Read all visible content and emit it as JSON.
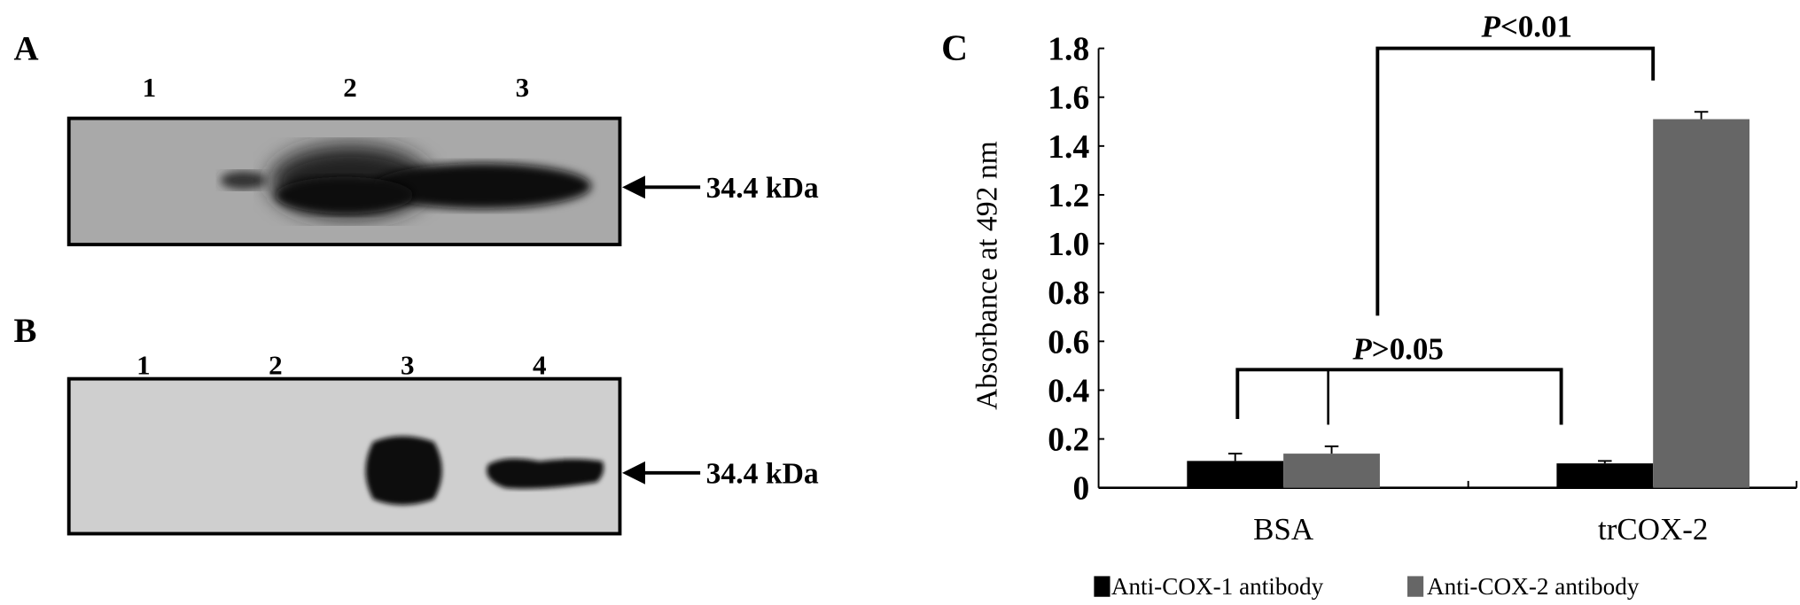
{
  "panel_a": {
    "label": "A",
    "lanes": [
      "1",
      "2",
      "3"
    ],
    "marker": "34.4 kDa"
  },
  "panel_b": {
    "label": "B",
    "lanes": [
      "1",
      "2",
      "3",
      "4"
    ],
    "marker": "34.4 kDa"
  },
  "chart_data": {
    "panel_label": "C",
    "type": "bar",
    "categories": [
      "BSA",
      "trCOX-2"
    ],
    "series": [
      {
        "name": "Anti-COX-1 antibody",
        "values": [
          0.11,
          0.1
        ],
        "errors": [
          0.03,
          0.01
        ],
        "color": "#000000"
      },
      {
        "name": "Anti-COX-2 antibody",
        "values": [
          0.14,
          1.51
        ],
        "errors": [
          0.03,
          0.03
        ],
        "color": "#666666"
      }
    ],
    "ylabel": "Absorbance at 492 nm",
    "xlabel": "",
    "ylim": [
      0,
      1.8
    ],
    "yticks": [
      "0",
      "0.2",
      "0.4",
      "0.6",
      "0.8",
      "1.0",
      "1.2",
      "1.4",
      "1.6",
      "1.8"
    ],
    "grid": false,
    "legend_position": "bottom",
    "annotations": [
      {
        "prefix": "P",
        "text": "<0.01"
      },
      {
        "prefix": "P",
        "text": ">0.05"
      }
    ]
  }
}
